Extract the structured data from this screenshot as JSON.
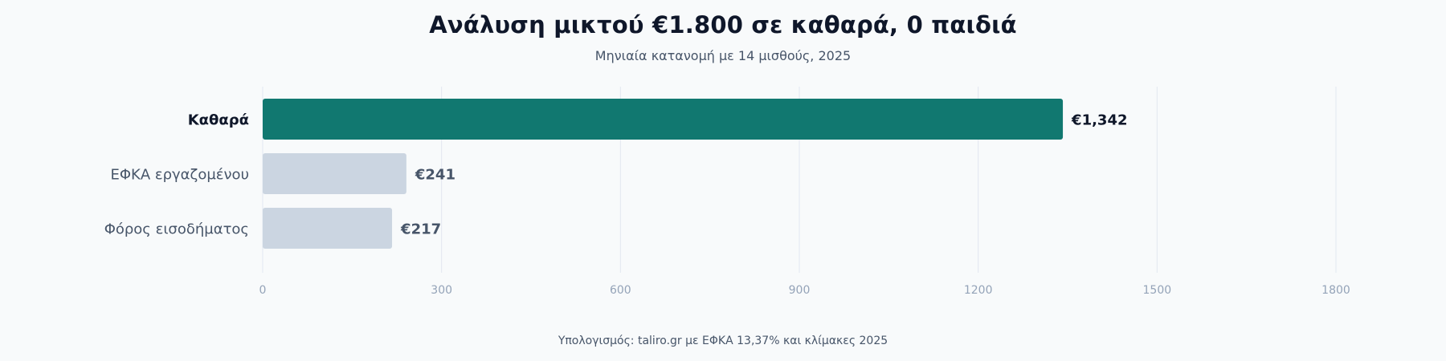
{
  "chart_data": {
    "type": "bar",
    "orientation": "horizontal",
    "title": "Ανάλυση μικτού €1.800 σε καθαρά, 0 παιδιά",
    "subtitle": "Μηνιαία κατανομή με 14 μισθούς, 2025",
    "categories": [
      "Καθαρά",
      "ΕΦΚΑ εργαζομένου",
      "Φόρος εισοδήματος"
    ],
    "values": [
      1342,
      241,
      217
    ],
    "value_labels": [
      "€1,342",
      "€241",
      "€217"
    ],
    "highlight": [
      true,
      false,
      false
    ],
    "xlim": [
      0,
      1800
    ],
    "xticks": [
      0,
      300,
      600,
      900,
      1200,
      1500,
      1800
    ],
    "xtick_labels": [
      "0",
      "300",
      "600",
      "900",
      "1200",
      "1500",
      "1800"
    ],
    "xlabel": "",
    "ylabel": "",
    "grid": "vertical",
    "legend": "none",
    "footer": "Υπολογισμός: taliro.gr με ΕΦΚΑ 13,37% και κλίμακες 2025"
  },
  "colors": {
    "highlight_bar": "#117870",
    "muted_bar": "#cbd5e1",
    "highlight_text": "#0f172a",
    "muted_text": "#475569",
    "grid": "#e2e8f0",
    "tick_text": "#94a3b8",
    "background": "#f8fafb"
  }
}
